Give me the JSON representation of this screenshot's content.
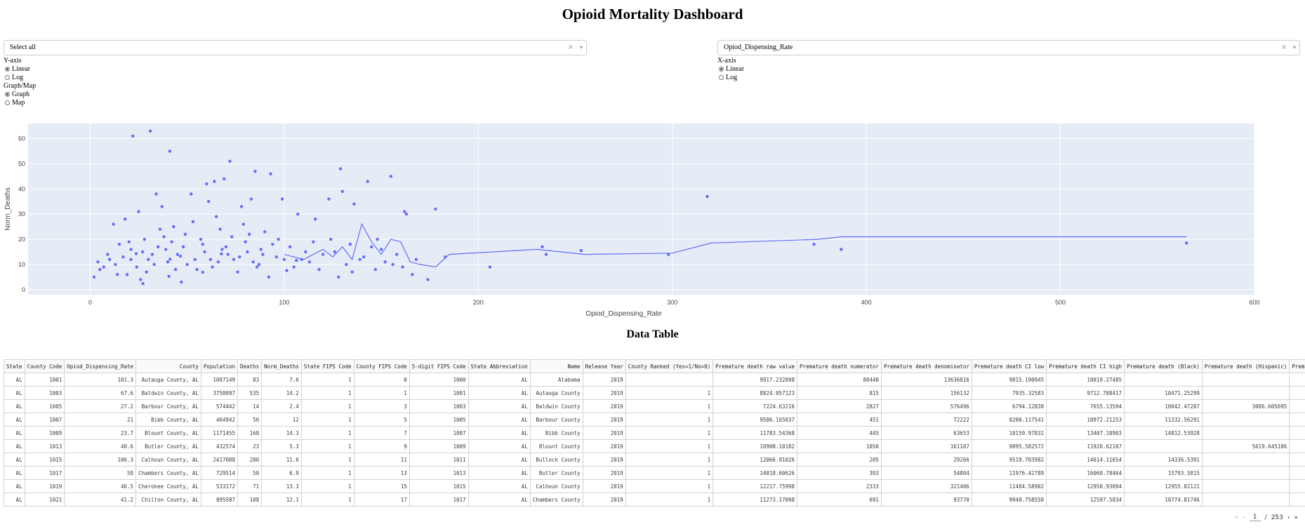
{
  "title": "Opioid Mortality Dashboard",
  "left_dropdown": {
    "value": "Select all",
    "clear": "×",
    "arrow": "▾"
  },
  "right_dropdown": {
    "value": "Opiod_Dispensing_Rate",
    "clear": "×",
    "arrow": "▾"
  },
  "yaxis_control": {
    "label": "Y-axis",
    "options": [
      "Linear",
      "Log"
    ],
    "selected": "Linear"
  },
  "xaxis_control": {
    "label": "X-axis",
    "options": [
      "Linear",
      "Log"
    ],
    "selected": "Linear"
  },
  "mode_control": {
    "label": "Graph/Map",
    "options": [
      "Graph",
      "Map"
    ],
    "selected": "Graph"
  },
  "colors": {
    "marker": "#636efa",
    "plot_bg": "#e5ecf6"
  },
  "chart_data": {
    "type": "scatter",
    "xlabel": "Opiod_Dispensing_Rate",
    "ylabel": "Norm_Deaths",
    "xlim": [
      -32,
      600
    ],
    "ylim": [
      -2,
      66
    ],
    "xticks": [
      0,
      100,
      200,
      300,
      400,
      500,
      600
    ],
    "yticks": [
      0,
      10,
      20,
      30,
      40,
      50,
      60
    ],
    "grid": true,
    "series": [
      {
        "mode": "markers",
        "points": [
          [
            101.3,
            7.6
          ],
          [
            67.6,
            14.2
          ],
          [
            27.2,
            2.4
          ],
          [
            21,
            12
          ],
          [
            23.7,
            14.3
          ],
          [
            40.6,
            5.3
          ],
          [
            106.3,
            11.6
          ],
          [
            58,
            6.9
          ],
          [
            46.5,
            13.3
          ],
          [
            41.2,
            12.1
          ],
          [
            22,
            61
          ],
          [
            31,
            63
          ],
          [
            41,
            55
          ],
          [
            72,
            51
          ],
          [
            85,
            47
          ],
          [
            93,
            46
          ],
          [
            129,
            48
          ],
          [
            155,
            45
          ],
          [
            143,
            43
          ],
          [
            60,
            42
          ],
          [
            69,
            44
          ],
          [
            64,
            43
          ],
          [
            99,
            36
          ],
          [
            123,
            36
          ],
          [
            130,
            39
          ],
          [
            136,
            34
          ],
          [
            83,
            36
          ],
          [
            178,
            32
          ],
          [
            318,
            37
          ],
          [
            162,
            31
          ],
          [
            163,
            30
          ],
          [
            107,
            30
          ],
          [
            116,
            28
          ],
          [
            12,
            26
          ],
          [
            18,
            28
          ],
          [
            25,
            31
          ],
          [
            34,
            38
          ],
          [
            37,
            33
          ],
          [
            52,
            38
          ],
          [
            61,
            35
          ],
          [
            78,
            33
          ],
          [
            233,
            17
          ],
          [
            183,
            13
          ],
          [
            206,
            9
          ],
          [
            174,
            4
          ],
          [
            253,
            15.5
          ],
          [
            373,
            18
          ],
          [
            387,
            16
          ],
          [
            565,
            18.5
          ],
          [
            298,
            14
          ],
          [
            235,
            14
          ],
          [
            147,
            8
          ],
          [
            161,
            9
          ],
          [
            128,
            5
          ],
          [
            135,
            7
          ],
          [
            152,
            11
          ],
          [
            166,
            6
          ],
          [
            4,
            11
          ],
          [
            2,
            5
          ],
          [
            7,
            9
          ],
          [
            9,
            14
          ],
          [
            15,
            18
          ],
          [
            19,
            6
          ],
          [
            28,
            20
          ],
          [
            33,
            10
          ],
          [
            39,
            16
          ],
          [
            44,
            8
          ],
          [
            49,
            22
          ],
          [
            54,
            12
          ],
          [
            58,
            18
          ],
          [
            63,
            9
          ],
          [
            67,
            24
          ],
          [
            71,
            14
          ],
          [
            76,
            7
          ],
          [
            80,
            19
          ],
          [
            84,
            11
          ],
          [
            88,
            16
          ],
          [
            92,
            5
          ],
          [
            96,
            13
          ],
          [
            105,
            9
          ],
          [
            111,
            15
          ],
          [
            118,
            8
          ],
          [
            124,
            20
          ],
          [
            139,
            12
          ],
          [
            145,
            17
          ],
          [
            158,
            14
          ],
          [
            26,
            4
          ],
          [
            30,
            12
          ],
          [
            36,
            24
          ],
          [
            42,
            19
          ],
          [
            47,
            3
          ],
          [
            53,
            27
          ],
          [
            59,
            15
          ],
          [
            65,
            29
          ],
          [
            73,
            21
          ],
          [
            79,
            26
          ],
          [
            86,
            9
          ],
          [
            90,
            23
          ],
          [
            13,
            10
          ],
          [
            17,
            13
          ],
          [
            21,
            16
          ],
          [
            24,
            9
          ],
          [
            29,
            7
          ],
          [
            32,
            14
          ],
          [
            35,
            17
          ],
          [
            40,
            11
          ],
          [
            45,
            14
          ],
          [
            50,
            10
          ],
          [
            55,
            8
          ],
          [
            62,
            12
          ],
          [
            68,
            16
          ],
          [
            74,
            12
          ],
          [
            81,
            15
          ],
          [
            87,
            10
          ],
          [
            94,
            18
          ],
          [
            100,
            12
          ],
          [
            113,
            11
          ],
          [
            120,
            14
          ],
          [
            132,
            10
          ],
          [
            141,
            13
          ],
          [
            150,
            16
          ],
          [
            5,
            8
          ],
          [
            10,
            12
          ],
          [
            14,
            6
          ],
          [
            20,
            19
          ],
          [
            27,
            15
          ],
          [
            38,
            21
          ],
          [
            43,
            25
          ],
          [
            48,
            17
          ],
          [
            57,
            20
          ],
          [
            66,
            11
          ],
          [
            70,
            17
          ],
          [
            77,
            13
          ],
          [
            82,
            22
          ],
          [
            89,
            14
          ],
          [
            97,
            20
          ],
          [
            103,
            17
          ],
          [
            109,
            12
          ],
          [
            115,
            19
          ],
          [
            126,
            15
          ],
          [
            134,
            18
          ],
          [
            148,
            20
          ],
          [
            156,
            10
          ],
          [
            168,
            12
          ]
        ]
      },
      {
        "mode": "lines",
        "points": [
          [
            100,
            14
          ],
          [
            110,
            12
          ],
          [
            120,
            16
          ],
          [
            125,
            13
          ],
          [
            130,
            17
          ],
          [
            135,
            12
          ],
          [
            140,
            26
          ],
          [
            145,
            19
          ],
          [
            150,
            14
          ],
          [
            155,
            20
          ],
          [
            160,
            19
          ],
          [
            165,
            11
          ],
          [
            170,
            10
          ],
          [
            178,
            9
          ],
          [
            185,
            14
          ],
          [
            230,
            16
          ],
          [
            255,
            14
          ],
          [
            300,
            14.5
          ],
          [
            320,
            18.5
          ],
          [
            375,
            20
          ],
          [
            387,
            21
          ],
          [
            565,
            21
          ]
        ]
      }
    ]
  },
  "table_title": "Data Table",
  "table": {
    "columns": [
      "State",
      "County Code",
      "Opiod_Dispensing_Rate",
      "County",
      "Population",
      "Deaths",
      "Norm_Deaths",
      "State FIPS Code",
      "County FIPS Code",
      "5-digit FIPS Code",
      "State Abbreviation",
      "Name",
      "Release Year",
      "County Ranked (Yes=1/No=0)",
      "Premature death raw value",
      "Premature death numerator",
      "Premature death denominator",
      "Premature death CI low",
      "Premature death CI high",
      "Premature death (Black)",
      "Premature death (Hispanic)",
      "Premature"
    ],
    "rows": [
      [
        "AL",
        "1001",
        "101.3",
        "Autauga County, AL",
        "1087149",
        "83",
        "7.6",
        "1",
        "0",
        "1000",
        "AL",
        "Alabama",
        "2019",
        "",
        "9917.232898",
        "80440",
        "13636816",
        "9815.190945",
        "10019.27485",
        "",
        "",
        " "
      ],
      [
        "AL",
        "1003",
        "67.6",
        "Baldwin County, AL",
        "3758097",
        "535",
        "14.2",
        "1",
        "1",
        "1001",
        "AL",
        "Autauga County",
        "2019",
        "1",
        "8824.057123",
        "815",
        "156132",
        "7935.32583",
        "9712.788417",
        "10471.25299",
        "",
        " "
      ],
      [
        "AL",
        "1005",
        "27.2",
        "Barbour County, AL",
        "574442",
        "14",
        "2.4",
        "1",
        "3",
        "1003",
        "AL",
        "Baldwin County",
        "2019",
        "1",
        "7224.63216",
        "2827",
        "576496",
        "6794.12838",
        "7655.13594",
        "10042.47287",
        "3086.605695",
        " "
      ],
      [
        "AL",
        "1007",
        "21",
        "Bibb County, AL",
        "464942",
        "56",
        "12",
        "1",
        "5",
        "1005",
        "AL",
        "Barbour County",
        "2019",
        "1",
        "9586.165037",
        "451",
        "72222",
        "8200.117541",
        "10972.21253",
        "11332.56291",
        "",
        " "
      ],
      [
        "AL",
        "1009",
        "23.7",
        "Blount County, AL",
        "1171455",
        "168",
        "14.3",
        "1",
        "7",
        "1007",
        "AL",
        "Bibb County",
        "2019",
        "1",
        "11783.54368",
        "445",
        "63653",
        "10159.97832",
        "13407.10903",
        "14812.53928",
        "",
        " "
      ],
      [
        "AL",
        "1013",
        "40.6",
        "Butler County, AL",
        "432574",
        "23",
        "5.3",
        "1",
        "9",
        "1009",
        "AL",
        "Blount County",
        "2019",
        "1",
        "10908.10182",
        "1050",
        "161107",
        "9895.582572",
        "11920.62107",
        "",
        "5619.645186",
        " "
      ],
      [
        "AL",
        "1015",
        "106.3",
        "Calhoun County, AL",
        "2417088",
        "280",
        "11.6",
        "1",
        "11",
        "1011",
        "AL",
        "Bullock County",
        "2019",
        "1",
        "12066.91026",
        "205",
        "29266",
        "9519.703982",
        "14614.11654",
        "14336.5391",
        "",
        " "
      ],
      [
        "AL",
        "1017",
        "58",
        "Chambers County, AL",
        "729514",
        "50",
        "6.9",
        "1",
        "13",
        "1013",
        "AL",
        "Butler County",
        "2019",
        "1",
        "14018.60626",
        "393",
        "54804",
        "11976.42789",
        "16060.78464",
        "15793.5815",
        "",
        " "
      ],
      [
        "AL",
        "1019",
        "46.5",
        "Cherokee County, AL",
        "533172",
        "71",
        "13.3",
        "1",
        "15",
        "1015",
        "AL",
        "Calhoun County",
        "2019",
        "1",
        "12217.75998",
        "2333",
        "321406",
        "11484.58902",
        "12950.93094",
        "12955.02121",
        "",
        " "
      ],
      [
        "AL",
        "1021",
        "41.2",
        "Chilton County, AL",
        "895587",
        "108",
        "12.1",
        "1",
        "17",
        "1017",
        "AL",
        "Chambers County",
        "2019",
        "1",
        "11273.17098",
        "691",
        "93770",
        "9948.758558",
        "12597.5834",
        "10774.81746",
        "",
        " "
      ]
    ]
  },
  "pager": {
    "first": "«",
    "prev": "‹",
    "current": "1",
    "sep": "/",
    "total": "253",
    "next": "›",
    "last": "»"
  }
}
